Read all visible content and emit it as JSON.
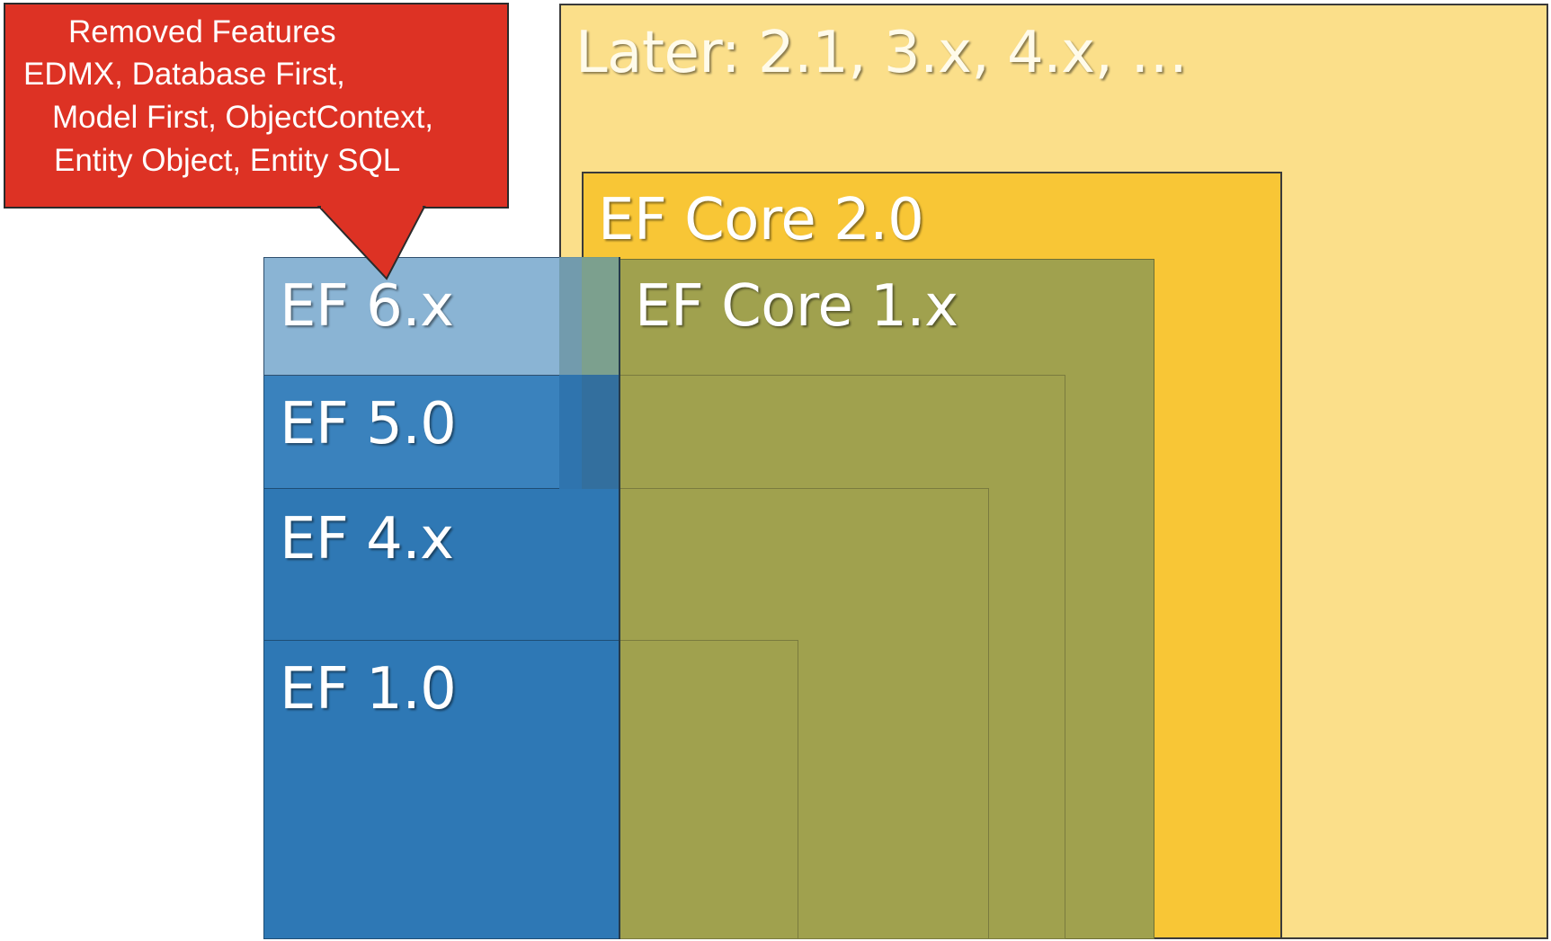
{
  "callout": {
    "lines": [
      "Removed Features",
      "EDMX, Database First,",
      "Model First,  ObjectContext,",
      "Entity Object,   Entity SQL"
    ]
  },
  "boxes": {
    "later": "Later: 2.1, 3.x, 4.x, …",
    "ef_core_2": "EF Core 2.0",
    "ef_core_1": "EF Core 1.x",
    "ef6": "EF 6.x",
    "ef5": "EF 5.0",
    "ef4": "EF 4.x",
    "ef1": "EF 1.0"
  },
  "colors": {
    "later": "#fbdf8a",
    "ef_core_2": "#f8c636",
    "ef_core": "#a0a14e",
    "ef6": "#8ab4d4",
    "ef5": "#3a82bd",
    "ef4": "#2f78b4",
    "ef1": "#2e78b5",
    "callout": "#dd3224"
  }
}
